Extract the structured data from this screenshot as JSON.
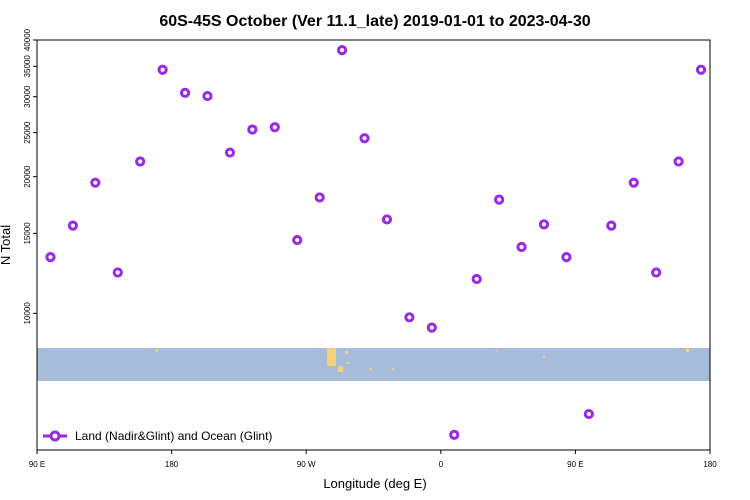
{
  "chart_data": {
    "type": "scatter",
    "title": "60S-45S October (Ver 11.1_late)   2019-01-01 to 2023-04-30",
    "xlabel": "Longitude (deg E)",
    "ylabel": "N Total",
    "x_ticks": [
      {
        "lon": 90,
        "label": "90 E"
      },
      {
        "lon": 180,
        "label": "180"
      },
      {
        "lon": 270,
        "label": "90 W"
      },
      {
        "lon": 360,
        "label": "0"
      },
      {
        "lon": 450,
        "label": "90 E"
      },
      {
        "lon": 540,
        "label": "180"
      }
    ],
    "xlim": [
      90,
      540
    ],
    "y_scale": "log",
    "y_ticks": [
      10000,
      15000,
      20000,
      25000,
      30000,
      35000,
      40000
    ],
    "ylim": [
      5000,
      40000
    ],
    "series": [
      {
        "name": "Land (Nadir&Glint) and Ocean (Glint)",
        "color": "#9b27e8",
        "marker": "open-circle",
        "points": [
          {
            "lon": 99,
            "value": 13300
          },
          {
            "lon": 114,
            "value": 15600
          },
          {
            "lon": 129,
            "value": 19400
          },
          {
            "lon": 144,
            "value": 12300
          },
          {
            "lon": 159,
            "value": 21600
          },
          {
            "lon": 174,
            "value": 34400
          },
          {
            "lon": 189,
            "value": 30600
          },
          {
            "lon": 204,
            "value": 30100
          },
          {
            "lon": 219,
            "value": 22600
          },
          {
            "lon": 234,
            "value": 25400
          },
          {
            "lon": 249,
            "value": 25700
          },
          {
            "lon": 264,
            "value": 14500
          },
          {
            "lon": 279,
            "value": 18000
          },
          {
            "lon": 294,
            "value": 38000
          },
          {
            "lon": 309,
            "value": 24300
          },
          {
            "lon": 324,
            "value": 16100
          },
          {
            "lon": 339,
            "value": 9800
          },
          {
            "lon": 354,
            "value": 9300
          },
          {
            "lon": 369,
            "value": 5400
          },
          {
            "lon": 384,
            "value": 11900
          },
          {
            "lon": 399,
            "value": 17800
          },
          {
            "lon": 414,
            "value": 14000
          },
          {
            "lon": 429,
            "value": 15700
          },
          {
            "lon": 444,
            "value": 13300
          },
          {
            "lon": 459,
            "value": 6000
          },
          {
            "lon": 474,
            "value": 15600
          },
          {
            "lon": 489,
            "value": 19400
          },
          {
            "lon": 504,
            "value": 12300
          },
          {
            "lon": 519,
            "value": 21600
          },
          {
            "lon": 534,
            "value": 34400
          }
        ]
      }
    ],
    "map_strip": {
      "ocean_color": "#a7bcd9",
      "land_color": "#f5d27a",
      "lat_range": "60S-45S",
      "land_bits": [
        {
          "lon": 170,
          "w": 2,
          "h": 4,
          "dy": 0
        },
        {
          "lon": 287,
          "w": 9,
          "h": 18,
          "dy": 0
        },
        {
          "lon": 293,
          "w": 5,
          "h": 6,
          "dy": 18
        },
        {
          "lon": 297,
          "w": 3,
          "h": 3,
          "dy": 3
        },
        {
          "lon": 298,
          "w": 3,
          "h": 2,
          "dy": 14
        },
        {
          "lon": 313,
          "w": 2,
          "h": 2,
          "dy": 20
        },
        {
          "lon": 328,
          "w": 2,
          "h": 2,
          "dy": 20
        },
        {
          "lon": 397,
          "w": 1,
          "h": 2,
          "dy": 2
        },
        {
          "lon": 429,
          "w": 2,
          "h": 2,
          "dy": 8
        },
        {
          "lon": 525,
          "w": 3,
          "h": 4,
          "dy": 0
        }
      ]
    }
  }
}
